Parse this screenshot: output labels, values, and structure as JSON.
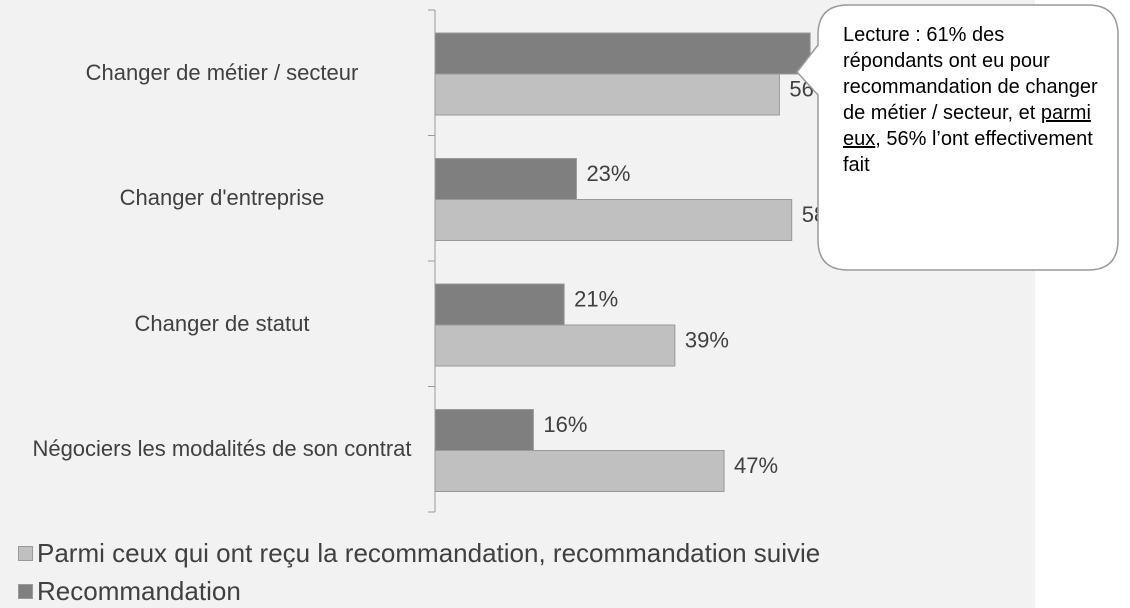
{
  "chart_data": {
    "type": "bar",
    "orientation": "horizontal",
    "categories": [
      "Changer de métier / secteur",
      "Changer d'entreprise",
      "Changer de statut",
      "Négociers les modalités de son contrat"
    ],
    "series": [
      {
        "name": "Parmi ceux qui ont reçu la recommandation, recommandation suivie",
        "color": "#c0c0c0",
        "values": [
          56,
          58,
          39,
          47
        ],
        "value_labels": [
          "56%",
          "58%",
          "39%",
          "47%"
        ]
      },
      {
        "name": "Recommandation",
        "color": "#7f7f7f",
        "values": [
          61,
          23,
          21,
          16
        ],
        "value_labels": [
          "61%",
          "23%",
          "21%",
          "16%"
        ]
      }
    ],
    "callout": {
      "text_before": "Lecture : 61% des répondants ont eu pour recommandation de changer de métier / secteur, et ",
      "underlined": "parmi eux",
      "text_after": ", 56% l’ont effectivement fait"
    }
  }
}
